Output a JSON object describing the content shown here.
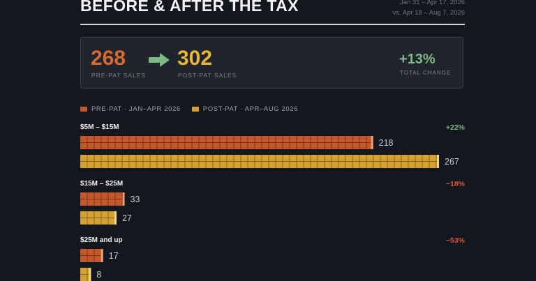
{
  "header": {
    "title": "BEFORE & AFTER THE TAX",
    "range_line1": "Jan 31 – Apr 17, 2026",
    "range_line2": "vs. Apr 18 – Aug 7, 2026"
  },
  "kpis": {
    "pre_value": "268",
    "pre_label": "PRE-PAT SALES",
    "post_value": "302",
    "post_label": "POST-PAT SALES",
    "change_value": "+13%",
    "change_label": "TOTAL CHANGE"
  },
  "colors": {
    "pre": "#c4582a",
    "post": "#d4a232",
    "positive": "#7fb887",
    "negative": "#d4583a"
  },
  "chart_data": {
    "type": "bar",
    "orientation": "horizontal",
    "categories": [
      "$5M – $15M",
      "$15M – $25M",
      "$25M and up"
    ],
    "series": [
      {
        "name": "PRE-PAT · JAN–APR 2026",
        "values": [
          218,
          33,
          17
        ]
      },
      {
        "name": "POST-PAT · APR–AUG 2026",
        "values": [
          267,
          27,
          8
        ]
      }
    ],
    "changes": [
      "+22%",
      "−18%",
      "−53%"
    ],
    "legend": "top-left"
  }
}
